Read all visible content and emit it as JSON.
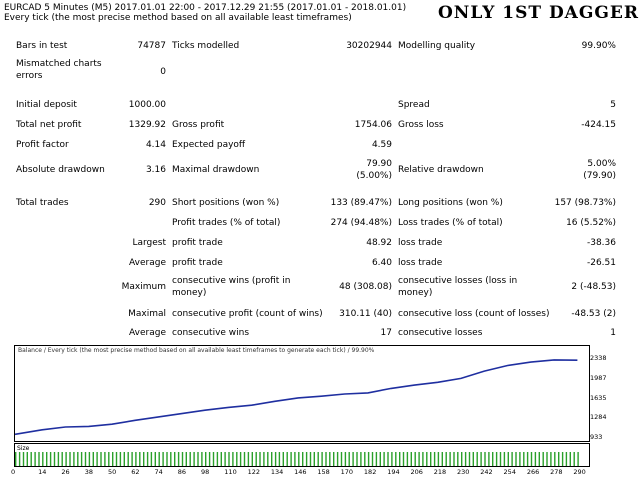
{
  "header": {
    "line1": "EURCAD 5 Minutes (M5) 2017.01.01 22:00 - 2017.12.29 21:55 (2017.01.01 - 2018.01.01)",
    "line2": "Every tick (the most precise method based on all available least timeframes)",
    "tag": "ONLY 1ST DAGGER"
  },
  "report": {
    "bars_label": "Bars in test",
    "bars_value": "74787",
    "ticks_label": "Ticks modelled",
    "ticks_value": "30202944",
    "quality_label": "Modelling quality",
    "quality_value": "99.90%",
    "mismatch_label": "Mismatched charts errors",
    "mismatch_value": "0",
    "deposit_label": "Initial deposit",
    "deposit_value": "1000.00",
    "spread_label": "Spread",
    "spread_value": "5",
    "netprofit_label": "Total net profit",
    "netprofit_value": "1329.92",
    "grossprofit_label": "Gross profit",
    "grossprofit_value": "1754.06",
    "grossloss_label": "Gross loss",
    "grossloss_value": "-424.15",
    "pf_label": "Profit factor",
    "pf_value": "4.14",
    "payoff_label": "Expected payoff",
    "payoff_value": "4.59",
    "absdd_label": "Absolute drawdown",
    "absdd_value": "3.16",
    "maxdd_label": "Maximal drawdown",
    "maxdd_value": "79.90",
    "maxdd_pct": "(5.00%)",
    "reldd_label": "Relative drawdown",
    "reldd_value": "5.00%",
    "reldd_abs": "(79.90)",
    "trades_label": "Total trades",
    "trades_value": "290",
    "short_label": "Short positions (won %)",
    "short_value": "133 (89.47%)",
    "long_label": "Long positions (won %)",
    "long_value": "157 (98.73%)",
    "profit_trades_label": "Profit trades (% of total)",
    "profit_trades_value": "274 (94.48%)",
    "loss_trades_label": "Loss trades (% of total)",
    "loss_trades_value": "16 (5.52%)",
    "largest_label": "Largest",
    "largest_profit_label": "profit trade",
    "largest_profit_value": "48.92",
    "largest_loss_label": "loss trade",
    "largest_loss_value": "-38.36",
    "average_label": "Average",
    "avg_profit_label": "profit trade",
    "avg_profit_value": "6.40",
    "avg_loss_label": "loss trade",
    "avg_loss_value": "-26.51",
    "maximum_label": "Maximum",
    "max_cw_label": "consecutive wins (profit in money)",
    "max_cw_value": "48 (308.08)",
    "max_cl_label": "consecutive losses (loss in money)",
    "max_cl_value": "2 (-48.53)",
    "maximal_label": "Maximal",
    "max_cp_label": "consecutive profit (count of wins)",
    "max_cp_value": "310.11 (40)",
    "max_closs_label": "consecutive loss (count of losses)",
    "max_closs_value": "-48.53 (2)",
    "average2_label": "Average",
    "avg_cw_label": "consecutive wins",
    "avg_cw_value": "17",
    "avg_cl_label": "consecutive losses",
    "avg_cl_value": "1"
  },
  "chart_data": {
    "type": "line",
    "title": "Balance / Every tick (the most precise method based on all available least timeframes to generate each tick) / 99.90%",
    "x_ticks": [
      0,
      14,
      26,
      38,
      50,
      62,
      74,
      86,
      98,
      110,
      122,
      134,
      146,
      158,
      170,
      182,
      194,
      206,
      218,
      230,
      242,
      254,
      266,
      278,
      290
    ],
    "y_ticks": [
      933,
      1284,
      1635,
      1987,
      2338
    ],
    "xlim": [
      0,
      296
    ],
    "ylim": [
      933,
      2400
    ],
    "line_color": "#1f2fa0",
    "x": [
      0,
      14,
      26,
      38,
      50,
      62,
      74,
      86,
      98,
      110,
      122,
      134,
      146,
      158,
      170,
      182,
      194,
      206,
      218,
      230,
      242,
      254,
      266,
      278,
      290
    ],
    "y": [
      1000,
      1080,
      1130,
      1140,
      1180,
      1250,
      1310,
      1370,
      1430,
      1480,
      1520,
      1590,
      1650,
      1680,
      1720,
      1740,
      1820,
      1880,
      1930,
      2000,
      2130,
      2230,
      2290,
      2330,
      2325
    ],
    "size_label": "Size",
    "size_color": "#2aa02a"
  }
}
